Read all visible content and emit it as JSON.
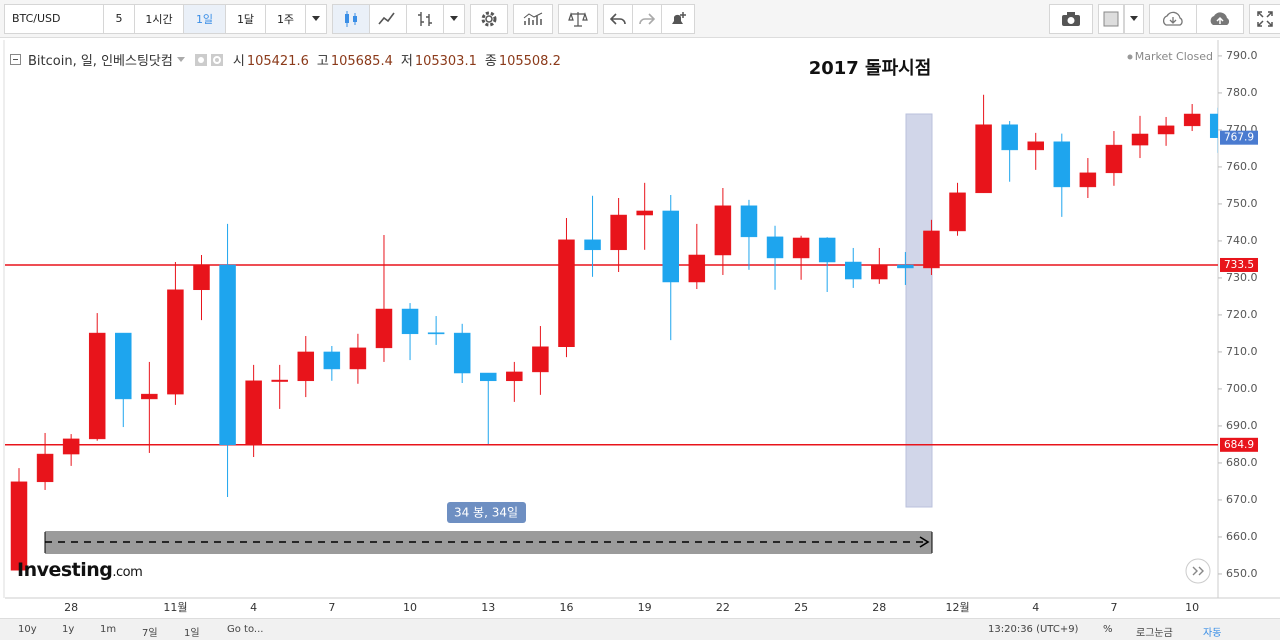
{
  "toolbar": {
    "symbol": "BTC/USD",
    "interval": 5,
    "periods": [
      "1시간",
      "1일",
      "1달",
      "1주"
    ]
  },
  "chart_data": {
    "type": "candlestick",
    "title": "Bitcoin, 일, 인베스팅닷컴",
    "ohlc_header": [
      {
        "label": "시",
        "value": 105421.6
      },
      {
        "label": "고",
        "value": 105685.4
      },
      {
        "label": "저",
        "value": 105303.1
      },
      {
        "label": "종",
        "value": 105508.2
      }
    ],
    "status": "Market Closed",
    "annotation": "2017 돌파시점",
    "measure_label": "34 봉, 34일",
    "categories": [
      null,
      null,
      "28",
      null,
      null,
      null,
      "11월",
      null,
      null,
      "4",
      null,
      null,
      "7",
      null,
      null,
      "10",
      null,
      null,
      "13",
      null,
      null,
      "16",
      null,
      null,
      "19",
      null,
      null,
      "22",
      null,
      null,
      "25",
      null,
      null,
      "28",
      null,
      null,
      "12월",
      null,
      null,
      "4",
      null,
      null,
      "7",
      null,
      null,
      "10",
      null
    ],
    "open": [
      651.0,
      674.9,
      682.4,
      686.5,
      715.1,
      697.3,
      698.6,
      726.8,
      733.5,
      684.9,
      702.0,
      702.2,
      710.0,
      705.4,
      711.1,
      721.6,
      715.2,
      715.1,
      704.3,
      702.2,
      704.6,
      711.4,
      740.3,
      737.6,
      747.0,
      748.1,
      728.9,
      736.2,
      749.5,
      741.1,
      735.4,
      740.8,
      734.3,
      729.7,
      733.5,
      732.7,
      742.7,
      753.0,
      771.4,
      764.6,
      766.8,
      754.6,
      758.4,
      765.9,
      768.9,
      771.1,
      774.3
    ],
    "high": [
      678.6,
      688.1,
      687.8,
      720.5,
      715.1,
      707.3,
      734.3,
      736.2,
      744.6,
      706.5,
      706.5,
      714.3,
      711.6,
      714.9,
      741.6,
      723.2,
      719.7,
      717.6,
      704.3,
      707.3,
      717.0,
      746.2,
      752.2,
      751.6,
      755.7,
      752.4,
      744.6,
      754.3,
      751.1,
      744.1,
      741.4,
      741.0,
      738.1,
      738.1,
      737.0,
      745.7,
      755.7,
      779.5,
      772.4,
      769.2,
      769.0,
      762.4,
      769.7,
      773.8,
      773.5,
      777.0,
      776.0
    ],
    "low": [
      651.0,
      672.7,
      679.2,
      686.0,
      689.7,
      682.7,
      695.7,
      718.6,
      670.8,
      681.6,
      694.6,
      697.8,
      702.2,
      701.4,
      707.3,
      707.8,
      711.9,
      701.6,
      685.1,
      696.5,
      698.4,
      708.6,
      730.3,
      731.6,
      737.6,
      713.2,
      727.0,
      730.8,
      732.2,
      726.8,
      729.5,
      726.2,
      727.3,
      728.4,
      728.1,
      730.8,
      741.4,
      753.0,
      756.0,
      759.2,
      746.5,
      751.6,
      754.9,
      762.4,
      765.7,
      769.7,
      763.8
    ],
    "close": [
      674.9,
      682.4,
      686.5,
      715.1,
      697.3,
      698.6,
      726.8,
      733.5,
      684.9,
      702.2,
      702.4,
      710.0,
      705.4,
      711.1,
      721.6,
      714.9,
      714.9,
      704.3,
      702.2,
      704.6,
      711.4,
      740.3,
      737.6,
      747.0,
      748.1,
      728.9,
      736.2,
      749.5,
      741.1,
      735.4,
      740.8,
      734.3,
      729.7,
      733.5,
      732.7,
      742.7,
      753.0,
      771.4,
      764.6,
      766.8,
      754.6,
      758.4,
      765.9,
      768.9,
      771.1,
      774.3,
      767.9
    ],
    "up_color": "#e8141b",
    "down_color": "#1ea5ee",
    "ylim": [
      643.5,
      794.3
    ],
    "yticks": [
      {
        "value": 650,
        "label": "650.0"
      },
      {
        "value": 660,
        "label": "660.0"
      },
      {
        "value": 670,
        "label": "670.0"
      },
      {
        "value": 680,
        "label": "680.0"
      },
      {
        "value": 690,
        "label": "690.0"
      },
      {
        "value": 700,
        "label": "700.0"
      },
      {
        "value": 710,
        "label": "710.0"
      },
      {
        "value": 720,
        "label": "720.0"
      },
      {
        "value": 730,
        "label": "730.0"
      },
      {
        "value": 740,
        "label": "740.0"
      },
      {
        "value": 750,
        "label": "750.0"
      },
      {
        "value": 760,
        "label": "760.0"
      },
      {
        "value": 770,
        "label": "770.0"
      },
      {
        "value": 780,
        "label": "780.0"
      },
      {
        "value": 790,
        "label": "790.0"
      }
    ],
    "hlines": [
      733.5,
      684.9
    ],
    "hline_color": "#e8141b",
    "last_price": 767.9,
    "last_price_color": "#4a7bd0",
    "watermark": {
      "brand": "Investing",
      "suffix": ".com"
    }
  },
  "bottom_bar": {
    "ranges": [
      "10y",
      "1y",
      "1m",
      "7일",
      "1일"
    ],
    "goto": "Go to...",
    "time": "13:20:36 (UTC+9)",
    "options": [
      "%",
      "로그눈금",
      "자동"
    ]
  }
}
